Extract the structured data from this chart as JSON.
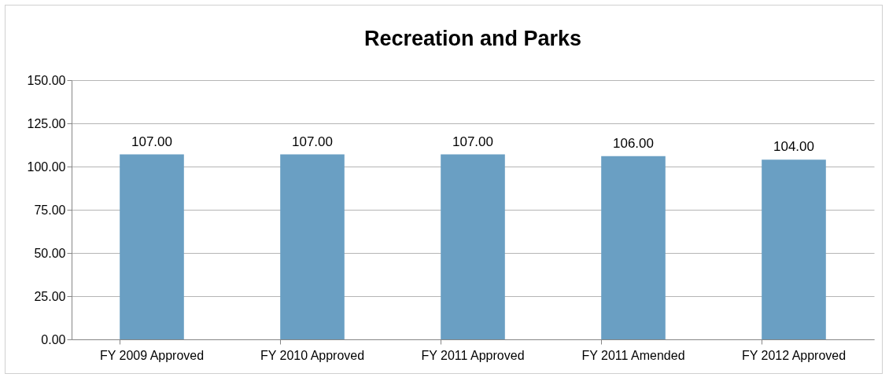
{
  "chart_data": {
    "type": "bar",
    "title": "Recreation and Parks",
    "categories": [
      "FY 2009 Approved",
      "FY 2010 Approved",
      "FY 2011 Approved",
      "FY 2011 Amended",
      "FY 2012 Approved"
    ],
    "values": [
      107,
      107,
      107,
      106,
      104
    ],
    "value_labels": [
      "107.00",
      "107.00",
      "107.00",
      "106.00",
      "104.00"
    ],
    "color": "#6a9fc3",
    "ylim": [
      0,
      150
    ],
    "yticks": [
      {
        "value": 0,
        "label": "0.00"
      },
      {
        "value": 25,
        "label": "25.00"
      },
      {
        "value": 50,
        "label": "50.00"
      },
      {
        "value": 75,
        "label": "75.00"
      },
      {
        "value": 100,
        "label": "100.00"
      },
      {
        "value": 125,
        "label": "125.00"
      },
      {
        "value": 150,
        "label": "150.00"
      }
    ],
    "grid": "y"
  }
}
